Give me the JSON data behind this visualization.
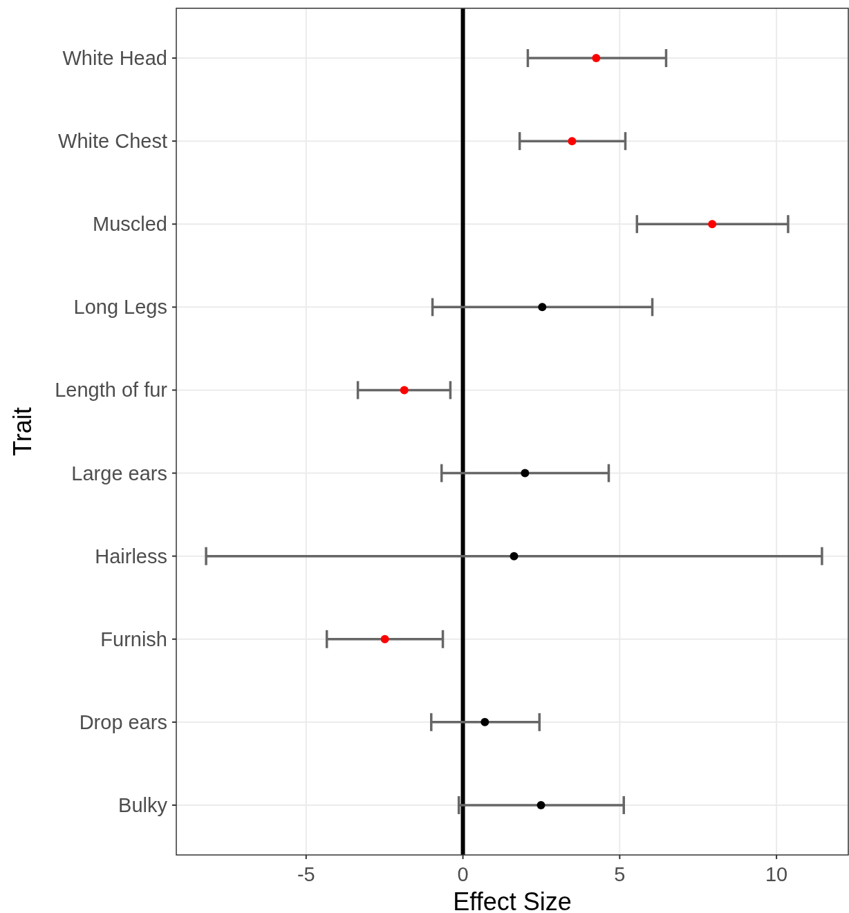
{
  "chart_data": {
    "type": "scatter",
    "orientation": "horizontal",
    "xlabel": "Effect Size",
    "ylabel": "Trait",
    "categories": [
      "White Head",
      "White Chest",
      "Muscled",
      "Long Legs",
      "Length of fur",
      "Large ears",
      "Hairless",
      "Furnish",
      "Drop ears",
      "Bulky"
    ],
    "values": [
      4.25,
      3.48,
      7.95,
      2.53,
      -1.87,
      1.98,
      1.63,
      -2.49,
      0.7,
      2.49
    ],
    "colors": [
      "#ff0000",
      "#ff0000",
      "#ff0000",
      "#000000",
      "#ff0000",
      "#000000",
      "#000000",
      "#ff0000",
      "#000000",
      "#000000"
    ],
    "errors": [
      [
        2.07,
        6.48
      ],
      [
        1.81,
        5.18
      ],
      [
        5.55,
        10.37
      ],
      [
        -0.97,
        6.04
      ],
      [
        -3.35,
        -0.4
      ],
      [
        -0.68,
        4.65
      ],
      [
        -8.19,
        11.45
      ],
      [
        -4.34,
        -0.64
      ],
      [
        -1.01,
        2.44
      ],
      [
        -0.13,
        5.13
      ]
    ],
    "xlim": [
      -9.14,
      12.29
    ],
    "xticks": [
      -5,
      0,
      5,
      10
    ],
    "ref_lines": [
      {
        "axis": "x",
        "value": 0,
        "color": "#000000"
      }
    ],
    "grid": true,
    "marker": "circle"
  }
}
